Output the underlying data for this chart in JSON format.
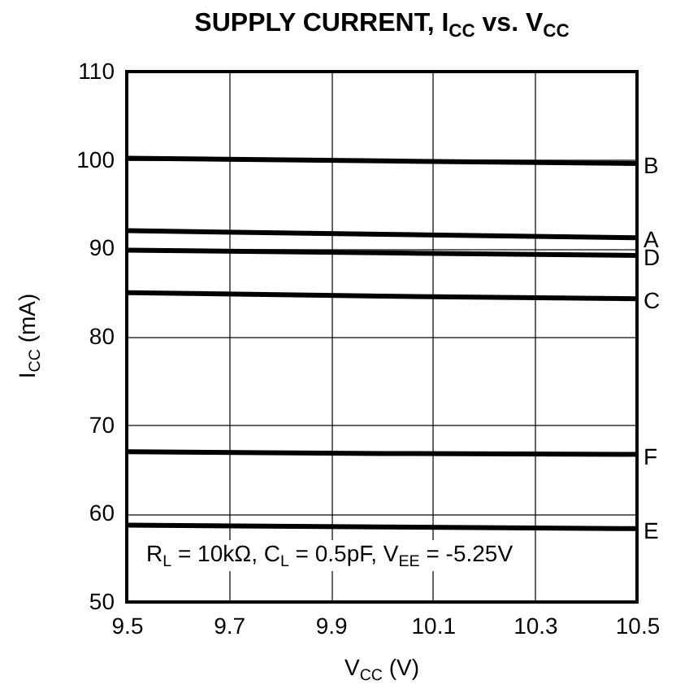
{
  "chart_data": {
    "type": "line",
    "title": "SUPPLY CURRENT, I$_{CC}$ vs. V$_{CC}$",
    "xlabel": "V$_{CC}$ (V)",
    "ylabel": "I$_{CC}$ (mA)",
    "annotations": [
      "R$_{L}$ = 10kΩ, C$_{L}$ = 0.5pF, V$_{EE}$ = -5.25V"
    ],
    "x": [
      9.5,
      10,
      10.5
    ],
    "series": [
      {
        "name": "B",
        "color": "#000000",
        "values": [
          100.2,
          99.9,
          99.6
        ]
      },
      {
        "name": "A",
        "color": "#000000",
        "values": [
          92,
          91.6,
          91.2
        ]
      },
      {
        "name": "D",
        "color": "#000000",
        "values": [
          89.8,
          89.5,
          89.2
        ]
      },
      {
        "name": "C",
        "color": "#000000",
        "values": [
          85,
          84.6,
          84.3
        ]
      },
      {
        "name": "F",
        "color": "#000000",
        "values": [
          67,
          66.8,
          66.7
        ]
      },
      {
        "name": "E",
        "color": "#000000",
        "values": [
          58.7,
          58.5,
          58.3
        ]
      }
    ],
    "xlim": [
      9.5,
      10.5
    ],
    "xticks": [
      9.5,
      9.7,
      9.9,
      10.1,
      10.3,
      10.5
    ],
    "ylim": [
      50,
      110
    ],
    "yticks": [
      50,
      60,
      70,
      80,
      90,
      100,
      110
    ],
    "grid": true,
    "line_style": "solid"
  }
}
